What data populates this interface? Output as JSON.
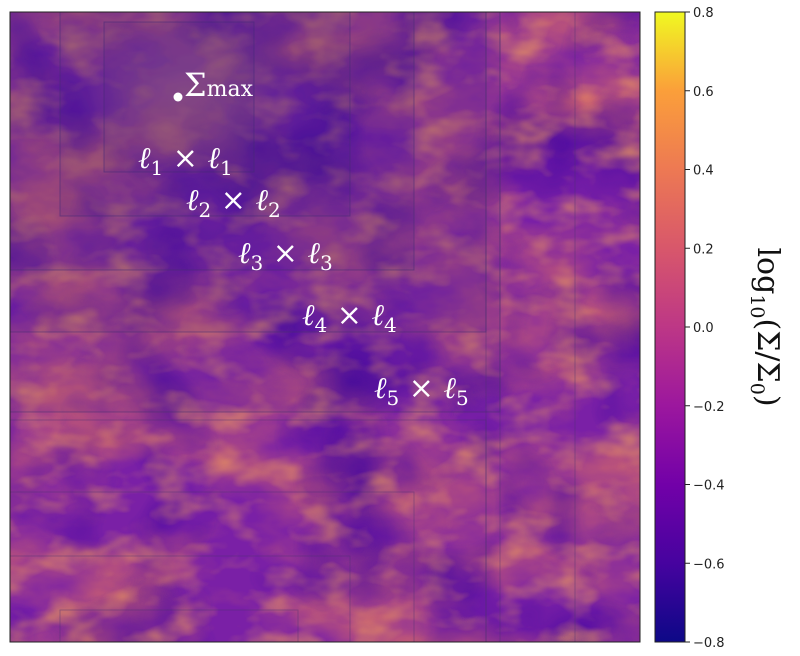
{
  "chart_data": {
    "type": "heatmap",
    "colormap": "plasma",
    "colorbar": {
      "label_prefix": "log",
      "label_base": "10",
      "label_body": "(Σ/Σ",
      "label_sub": "0",
      "label_suffix": ")",
      "min": -0.8,
      "max": 0.8,
      "ticks": [
        "0.8",
        "0.6",
        "0.4",
        "0.2",
        "0.0",
        "−0.2",
        "−0.4",
        "−0.6",
        "−0.8"
      ],
      "tick_values": [
        0.8,
        0.6,
        0.4,
        0.2,
        0.0,
        -0.2,
        -0.4,
        -0.6,
        -0.8
      ]
    },
    "marker": {
      "symbol": "Σ",
      "subscript": "max"
    },
    "boxes": [
      {
        "ell": "ℓ",
        "index": "1",
        "times": "×"
      },
      {
        "ell": "ℓ",
        "index": "2",
        "times": "×"
      },
      {
        "ell": "ℓ",
        "index": "3",
        "times": "×"
      },
      {
        "ell": "ℓ",
        "index": "4",
        "times": "×"
      },
      {
        "ell": "ℓ",
        "index": "5",
        "times": "×"
      }
    ]
  }
}
